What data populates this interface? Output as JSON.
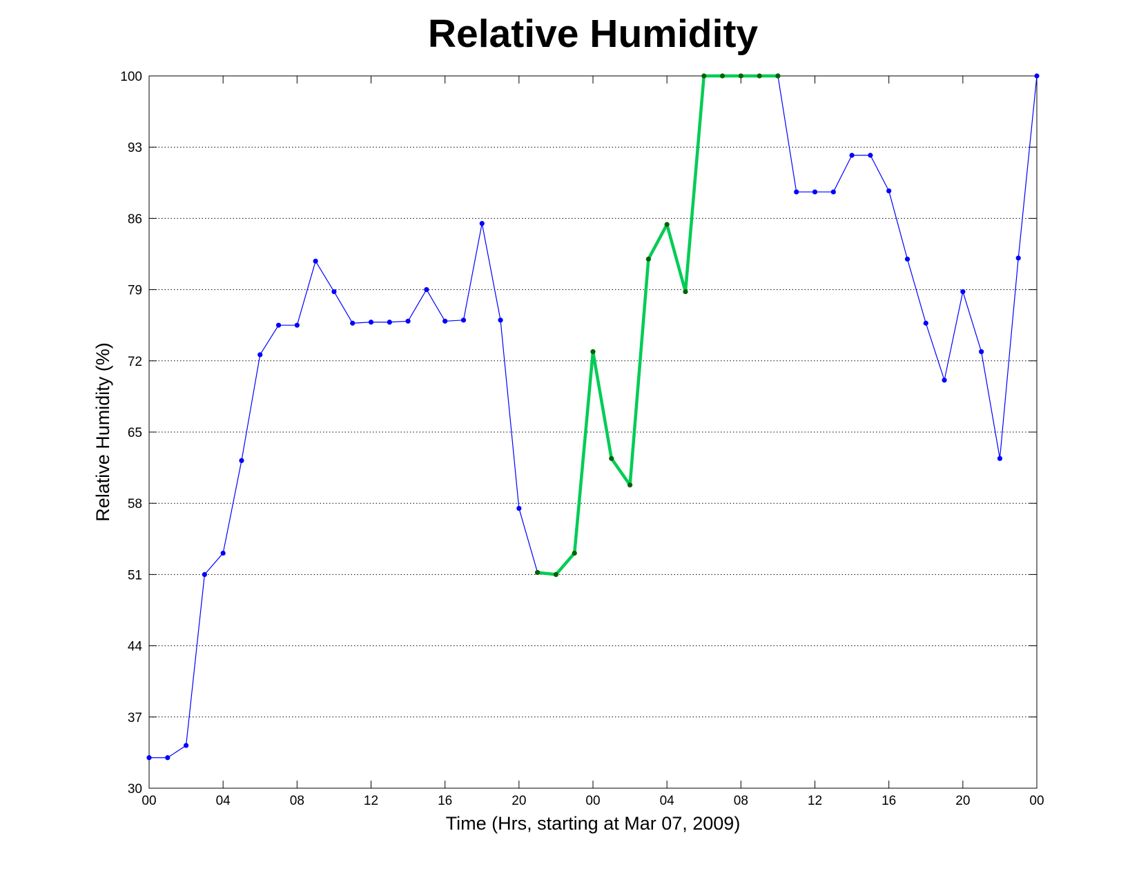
{
  "chart_data": {
    "type": "line",
    "title": "Relative Humidity",
    "x_label": "Time (Hrs, starting at Mar 07, 2009)",
    "y_label": "Relative Humidity (%)",
    "x": [
      0,
      1,
      2,
      3,
      4,
      5,
      6,
      7,
      8,
      9,
      10,
      11,
      12,
      13,
      14,
      15,
      16,
      17,
      18,
      19,
      20,
      21,
      22,
      23,
      24,
      25,
      26,
      27,
      28,
      29,
      30,
      31,
      32,
      33,
      34,
      35,
      36,
      37,
      38,
      39,
      40,
      41,
      42,
      43,
      44,
      45,
      46,
      47,
      48
    ],
    "series": [
      {
        "color": "#0000ff",
        "marker_color": "#0000ff",
        "line_width": 1.2,
        "values": [
          33,
          33,
          34.2,
          51,
          53.1,
          62.2,
          72.6,
          75.5,
          75.5,
          81.8,
          78.8,
          75.7,
          75.8,
          75.8,
          75.9,
          79,
          75.9,
          76,
          85.5,
          76,
          57.5,
          51.2,
          null,
          null,
          null,
          null,
          null,
          null,
          null,
          null,
          null,
          null,
          null,
          null,
          100,
          88.6,
          88.6,
          88.6,
          92.2,
          92.2,
          88.7,
          82,
          75.7,
          70.1,
          78.8,
          72.9,
          62.4,
          82.1,
          100
        ]
      },
      {
        "color": "#00cc55",
        "marker_color": "#006400",
        "line_width": 4.5,
        "values": [
          null,
          null,
          null,
          null,
          null,
          null,
          null,
          null,
          null,
          null,
          null,
          null,
          null,
          null,
          null,
          null,
          null,
          null,
          null,
          null,
          null,
          51.2,
          51,
          53.1,
          72.9,
          62.4,
          59.8,
          82,
          85.4,
          78.8,
          100,
          100,
          100,
          100,
          100,
          null,
          null,
          null,
          null,
          null,
          null,
          null,
          null,
          null,
          null,
          null,
          null,
          null,
          null
        ]
      }
    ],
    "xlim": [
      0,
      48
    ],
    "xticks": [
      {
        "value": 0,
        "label": "00"
      },
      {
        "value": 4,
        "label": "04"
      },
      {
        "value": 8,
        "label": "08"
      },
      {
        "value": 12,
        "label": "12"
      },
      {
        "value": 16,
        "label": "16"
      },
      {
        "value": 20,
        "label": "20"
      },
      {
        "value": 24,
        "label": "00"
      },
      {
        "value": 28,
        "label": "04"
      },
      {
        "value": 32,
        "label": "08"
      },
      {
        "value": 36,
        "label": "12"
      },
      {
        "value": 40,
        "label": "16"
      },
      {
        "value": 44,
        "label": "20"
      },
      {
        "value": 48,
        "label": "00"
      }
    ],
    "ylim": [
      30,
      100
    ],
    "yticks": [
      30,
      37,
      44,
      51,
      58,
      65,
      72,
      79,
      86,
      93,
      100
    ],
    "grid": "y"
  }
}
